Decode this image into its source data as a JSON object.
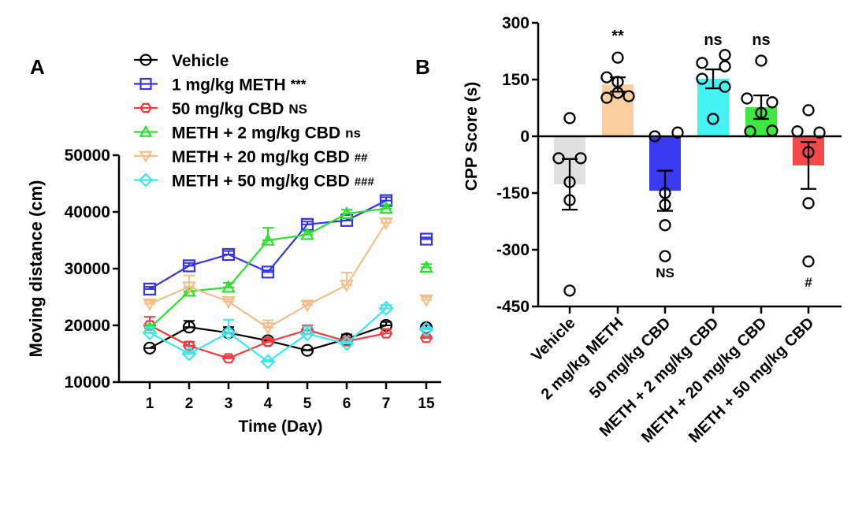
{
  "panels": {
    "a_label": "A",
    "b_label": "B"
  },
  "chart_data": [
    {
      "type": "line",
      "panel": "A",
      "title": "",
      "xlabel": "Time (Day)",
      "ylabel": "Moving distance (cm)",
      "x": [
        "1",
        "2",
        "3",
        "4",
        "5",
        "6",
        "7",
        "15"
      ],
      "ylim": [
        10000,
        50000
      ],
      "yticks": [
        10000,
        20000,
        30000,
        40000,
        50000
      ],
      "ytick_labels": [
        "10000",
        "20000",
        "30000",
        "40000",
        "50000"
      ],
      "legend_position": "top",
      "series": [
        {
          "name": "Vehicle",
          "sig": "",
          "color": "#000000",
          "marker": "circle",
          "values": [
            16000,
            19700,
            18700,
            17300,
            15600,
            17600,
            20000,
            19600
          ],
          "errors": [
            0,
            1100,
            1000,
            400,
            0,
            800,
            600,
            400
          ]
        },
        {
          "name": "1 mg/kg METH",
          "sig": "***",
          "color": "#3535e6",
          "marker": "square",
          "values": [
            26400,
            30500,
            32500,
            29400,
            37800,
            38500,
            42000,
            35200
          ],
          "errors": [
            400,
            500,
            600,
            300,
            500,
            400,
            600,
            300
          ]
        },
        {
          "name": "50 mg/kg CBD",
          "sig": "NS",
          "color": "#f03c3c",
          "marker": "hexagon",
          "values": [
            20000,
            16400,
            14200,
            17100,
            19200,
            17200,
            18600,
            17800
          ],
          "errors": [
            1500,
            700,
            400,
            500,
            800,
            400,
            700,
            300
          ]
        },
        {
          "name": "METH + 2 mg/kg CBD",
          "sig": "ns",
          "color": "#2ee02e",
          "marker": "triangle-up",
          "values": [
            19500,
            26000,
            26700,
            35000,
            36000,
            39700,
            40600,
            30200
          ],
          "errors": [
            600,
            500,
            800,
            2200,
            600,
            700,
            700,
            600
          ]
        },
        {
          "name": "METH + 20 mg/kg CBD",
          "sig": "##",
          "color": "#f7be8a",
          "marker": "triangle-down",
          "values": [
            23800,
            26800,
            24200,
            19600,
            23600,
            27100,
            38100,
            24500
          ],
          "errors": [
            500,
            2000,
            400,
            1300,
            500,
            2200,
            700,
            500
          ]
        },
        {
          "name": "METH + 50 mg/kg CBD",
          "sig": "###",
          "color": "#3ae8ef",
          "marker": "diamond",
          "values": [
            18700,
            15000,
            18700,
            13600,
            18500,
            16800,
            23000,
            19300
          ],
          "errors": [
            1000,
            300,
            2300,
            300,
            1300,
            300,
            600,
            300
          ]
        }
      ]
    },
    {
      "type": "bar",
      "panel": "B",
      "title": "",
      "xlabel": "",
      "ylabel": "CPP Score (s)",
      "ylim": [
        -450,
        300
      ],
      "yticks": [
        -450,
        -300,
        -150,
        0,
        150,
        300
      ],
      "ytick_labels": [
        "-450",
        "-300",
        "-150",
        "0",
        "150",
        "300"
      ],
      "categories": [
        "Vehicle",
        "2 mg/kg METH",
        "50 mg/kg CBD",
        "METH + 2 mg/kg CBD",
        "METH + 20 mg/kg CBD",
        "METH + 50 mg/kg CBD"
      ],
      "colors": [
        "#e0e0e0",
        "#fbcf9e",
        "#3a3af2",
        "#44f4f4",
        "#3ee83e",
        "#f54848"
      ],
      "values": [
        -127,
        137,
        -144,
        152,
        77,
        -77
      ],
      "errors": [
        67,
        19,
        53,
        25,
        31,
        62
      ],
      "annotations": [
        "",
        "**",
        "NS",
        "ns",
        "ns",
        "#"
      ],
      "points": [
        [
          48,
          -58,
          -58,
          -121,
          -169,
          -408
        ],
        [
          208,
          156,
          144,
          115,
          102,
          106
        ],
        [
          0,
          10,
          -150,
          -181,
          -235,
          -317
        ],
        [
          194,
          215,
          185,
          152,
          131,
          46
        ],
        [
          200,
          100,
          90,
          62,
          13,
          15
        ],
        [
          69,
          13,
          10,
          -42,
          -177,
          -331
        ]
      ]
    }
  ]
}
